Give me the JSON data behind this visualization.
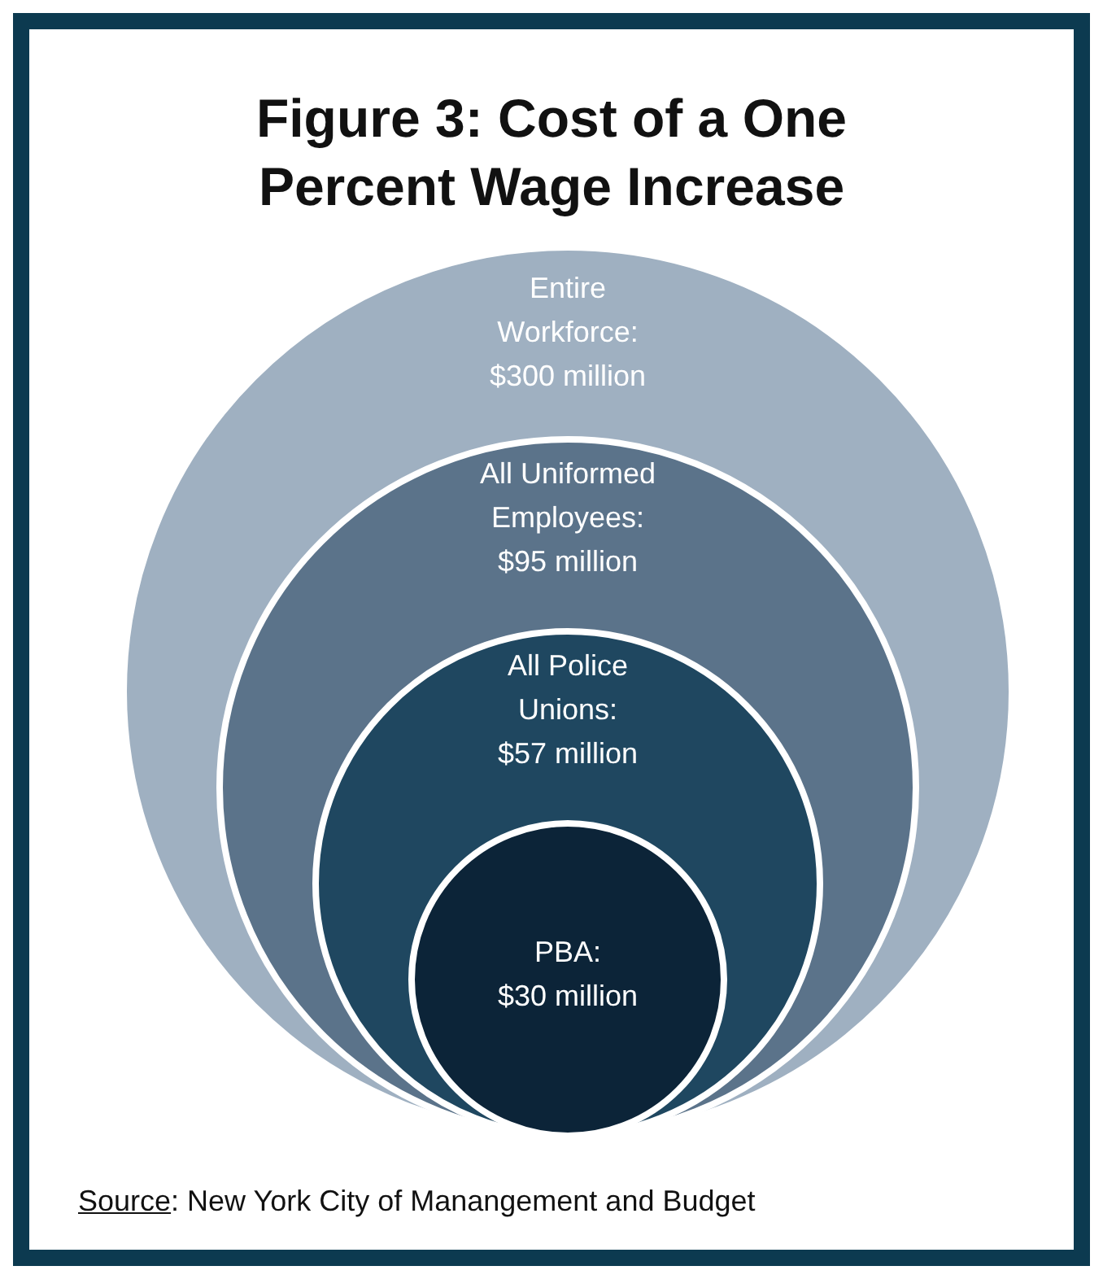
{
  "chart_data": {
    "type": "other",
    "title": "Figure 3: Cost of a One Percent Wage Increase",
    "values": [
      300,
      95,
      57,
      30
    ],
    "value_labels": [
      "Entire Workforce: $300 million",
      "All Uniformed Employees: $95 million",
      "All Police Unions: $57 million",
      "PBA: $30 million"
    ],
    "colors": [
      "#9fb0c1",
      "#5b738a",
      "#1f4760",
      "#0c2438"
    ],
    "annotations": [
      "Source: New York City of Manangement and Budget"
    ]
  }
}
